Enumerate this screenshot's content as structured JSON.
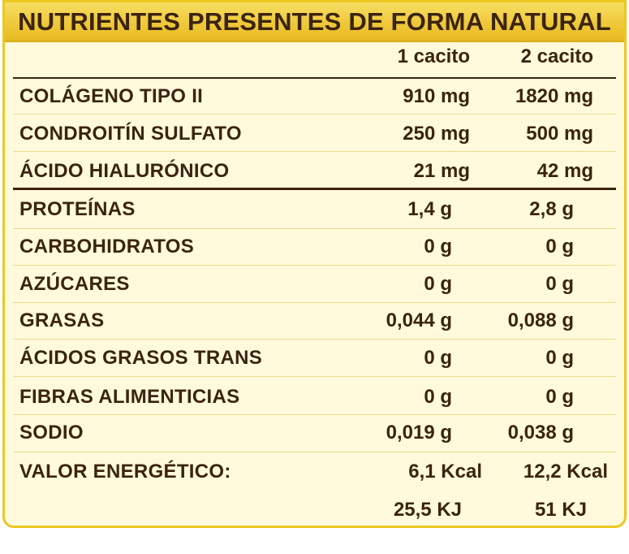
{
  "title": "NUTRIENTES PRESENTES DE FORMA NATURAL",
  "columns": [
    "1 cacito",
    "2 cacito"
  ],
  "group1": [
    {
      "label": "COLÁGENO TIPO II",
      "v1": "910 mg",
      "v2": "1820 mg"
    },
    {
      "label": "CONDROITÍN SULFATO",
      "v1": "250 mg",
      "v2": "500 mg"
    },
    {
      "label": "ÁCIDO HIALURÓNICO",
      "v1": "21 mg",
      "v2": "42 mg"
    }
  ],
  "group2": [
    {
      "label": "PROTEÍNAS",
      "v1": "1,4 g",
      "v2": "2,8 g"
    },
    {
      "label": "CARBOHIDRATOS",
      "v1": "0 g",
      "v2": "0 g"
    },
    {
      "label": "AZÚCARES",
      "v1": "0 g",
      "v2": "0 g"
    },
    {
      "label": "GRASAS",
      "v1": "0,044 g",
      "v2": "0,088 g"
    },
    {
      "label": "ÁCIDOS GRASOS TRANS",
      "v1": "0 g",
      "v2": "0 g"
    },
    {
      "label": "FIBRAS ALIMENTICIAS",
      "v1": "0 g",
      "v2": "0 g"
    },
    {
      "label": "SODIO",
      "v1": "0,019 g",
      "v2": "0,038 g"
    }
  ],
  "energy": {
    "label": "VALOR ENERGÉTICO:",
    "kcal_1": "6,1 Kcal",
    "kcal_2": "12,2 Kcal",
    "kj_1": "25,5 KJ",
    "kj_2": "51 KJ"
  }
}
